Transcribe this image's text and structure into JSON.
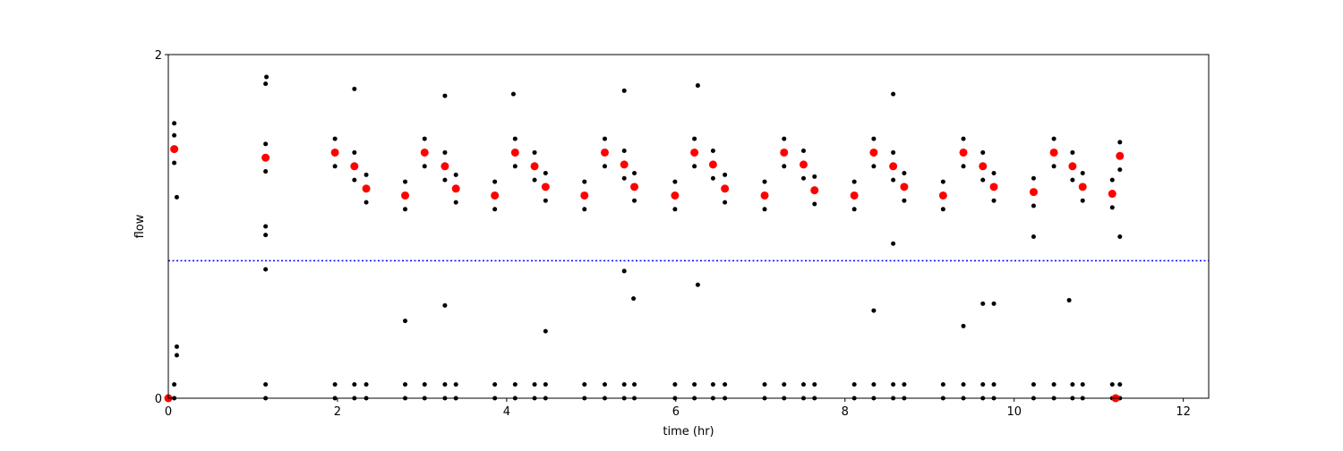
{
  "chart_data": {
    "type": "scatter",
    "xlabel": "time (hr)",
    "ylabel": "flow",
    "xlim": [
      0,
      12.3
    ],
    "ylim": [
      0,
      2
    ],
    "xticks": [
      0,
      2,
      4,
      6,
      8,
      10,
      12
    ],
    "yticks": [
      0,
      2
    ],
    "hline": {
      "value": 0.8,
      "color": "#0000ff"
    },
    "series": [
      {
        "color": "#000000",
        "size": 2.5,
        "x": [
          0.07,
          0.07,
          0.07,
          0.07,
          0.07,
          1.15,
          1.15,
          1.15,
          1.15,
          1.15,
          1.97,
          1.97,
          1.97,
          1.97,
          1.97,
          2.2,
          2.2,
          2.2,
          2.2,
          2.2,
          2.34,
          2.34,
          2.34,
          2.34,
          2.34,
          2.8,
          2.8,
          2.8,
          2.8,
          2.8,
          3.03,
          3.03,
          3.03,
          3.03,
          3.03,
          3.27,
          3.27,
          3.27,
          3.27,
          3.27,
          3.4,
          3.4,
          3.4,
          3.4,
          3.4,
          3.86,
          3.86,
          3.86,
          3.86,
          3.86,
          4.1,
          4.1,
          4.1,
          4.1,
          4.1,
          4.33,
          4.33,
          4.33,
          4.33,
          4.33,
          4.46,
          4.46,
          4.46,
          4.46,
          4.46,
          4.92,
          4.92,
          4.92,
          4.92,
          4.92,
          5.16,
          5.16,
          5.16,
          5.16,
          5.16,
          5.39,
          5.39,
          5.39,
          5.39,
          5.39,
          5.51,
          5.51,
          5.51,
          5.51,
          5.51,
          5.99,
          5.99,
          5.99,
          5.99,
          5.99,
          6.22,
          6.22,
          6.22,
          6.22,
          6.22,
          6.44,
          6.44,
          6.44,
          6.44,
          6.44,
          6.58,
          6.58,
          6.58,
          6.58,
          6.58,
          7.05,
          7.05,
          7.05,
          7.05,
          7.05,
          7.28,
          7.28,
          7.28,
          7.28,
          7.28,
          7.51,
          7.51,
          7.51,
          7.51,
          7.51,
          7.64,
          7.64,
          7.64,
          7.64,
          7.64,
          8.11,
          8.11,
          8.11,
          8.11,
          8.11,
          8.34,
          8.34,
          8.34,
          8.34,
          8.34,
          8.57,
          8.57,
          8.57,
          8.57,
          8.57,
          8.7,
          8.7,
          8.7,
          8.7,
          8.7,
          9.16,
          9.16,
          9.16,
          9.16,
          9.16,
          9.4,
          9.4,
          9.4,
          9.4,
          9.4,
          9.63,
          9.63,
          9.63,
          9.63,
          9.63,
          9.76,
          9.76,
          9.76,
          9.76,
          9.76,
          10.23,
          10.23,
          10.23,
          10.23,
          10.23,
          10.47,
          10.47,
          10.47,
          10.47,
          10.47,
          10.69,
          10.69,
          10.69,
          10.69,
          10.69,
          10.81,
          10.81,
          10.81,
          10.81,
          10.81,
          11.16,
          11.16,
          11.16,
          11.16,
          11.16,
          11.25,
          11.25,
          11.25,
          11.25,
          11.25,
          1.16,
          1.15,
          1.15,
          1.15,
          1.15,
          0.1,
          0.1,
          0.1,
          2.2,
          3.27,
          4.08,
          5.39,
          6.26,
          8.57,
          0.07,
          5.39,
          5.5,
          6.26,
          10.65,
          2.8,
          3.27,
          8.34,
          11.25,
          8.57,
          10.23,
          4.46,
          9.4,
          9.63,
          9.76
        ],
        "values": [
          1.53,
          1.45,
          1.37,
          0.08,
          0,
          1.48,
          1.4,
          1.32,
          0.08,
          0,
          1.51,
          1.43,
          1.35,
          0.08,
          0,
          1.43,
          1.35,
          1.27,
          0.08,
          0,
          1.3,
          1.22,
          1.14,
          0.08,
          0,
          1.26,
          1.18,
          1.1,
          0.08,
          0,
          1.51,
          1.43,
          1.35,
          0.08,
          0,
          1.43,
          1.35,
          1.27,
          0.08,
          0,
          1.3,
          1.22,
          1.14,
          0.08,
          0,
          1.26,
          1.18,
          1.1,
          0.08,
          0,
          1.51,
          1.43,
          1.35,
          0.08,
          0,
          1.43,
          1.35,
          1.27,
          0.08,
          0,
          1.31,
          1.23,
          1.15,
          0.08,
          0,
          1.26,
          1.18,
          1.1,
          0.08,
          0,
          1.51,
          1.43,
          1.35,
          0.08,
          0,
          1.44,
          1.36,
          1.28,
          0.08,
          0,
          1.31,
          1.23,
          1.15,
          0.08,
          0,
          1.26,
          1.18,
          1.1,
          0.08,
          0,
          1.51,
          1.43,
          1.35,
          0.08,
          0,
          1.44,
          1.36,
          1.28,
          0.08,
          0,
          1.3,
          1.22,
          1.14,
          0.08,
          0,
          1.26,
          1.18,
          1.1,
          0.08,
          0,
          1.51,
          1.43,
          1.35,
          0.08,
          0,
          1.44,
          1.36,
          1.28,
          0.08,
          0,
          1.29,
          1.21,
          1.13,
          0.08,
          0,
          1.26,
          1.18,
          1.1,
          0.08,
          0,
          1.51,
          1.43,
          1.35,
          0.08,
          0,
          1.43,
          1.35,
          1.27,
          0.08,
          0,
          1.31,
          1.23,
          1.15,
          0.08,
          0,
          1.26,
          1.18,
          1.1,
          0.08,
          0,
          1.51,
          1.43,
          1.35,
          0.08,
          0,
          1.43,
          1.35,
          1.27,
          0.08,
          0,
          1.31,
          1.23,
          1.15,
          0.08,
          0,
          1.28,
          1.2,
          1.12,
          0.08,
          0,
          1.51,
          1.43,
          1.35,
          0.08,
          0,
          1.43,
          1.35,
          1.27,
          0.08,
          0,
          1.31,
          1.23,
          1.15,
          0.08,
          0,
          1.27,
          1.19,
          1.11,
          0.08,
          0,
          1.49,
          1.41,
          1.33,
          0.08,
          0,
          1.87,
          1.83,
          1.0,
          0.95,
          0.75,
          1.17,
          0.3,
          0.25,
          1.8,
          1.76,
          1.77,
          1.79,
          1.82,
          1.77,
          1.6,
          0.74,
          0.58,
          0.66,
          0.57,
          0.45,
          0.54,
          0.51,
          0.94,
          0.9,
          0.94,
          0.39,
          0.42,
          0.55,
          0.55
        ]
      },
      {
        "color": "#ff0000",
        "size": 4.5,
        "x": [
          0.07,
          1.15,
          1.97,
          2.2,
          2.34,
          2.8,
          3.03,
          3.27,
          3.4,
          3.86,
          4.1,
          4.33,
          4.46,
          4.92,
          5.16,
          5.39,
          5.51,
          5.99,
          6.22,
          6.44,
          6.58,
          7.05,
          7.28,
          7.51,
          7.64,
          8.11,
          8.34,
          8.57,
          8.7,
          9.16,
          9.4,
          9.63,
          9.76,
          10.23,
          10.47,
          10.69,
          10.81,
          11.16,
          11.25,
          0,
          11.2
        ],
        "values": [
          1.45,
          1.4,
          1.43,
          1.35,
          1.22,
          1.18,
          1.43,
          1.35,
          1.22,
          1.18,
          1.43,
          1.35,
          1.23,
          1.18,
          1.43,
          1.36,
          1.23,
          1.18,
          1.43,
          1.36,
          1.22,
          1.18,
          1.43,
          1.36,
          1.21,
          1.18,
          1.43,
          1.35,
          1.23,
          1.18,
          1.43,
          1.35,
          1.23,
          1.2,
          1.43,
          1.35,
          1.23,
          1.19,
          1.41,
          0,
          0
        ]
      }
    ]
  }
}
